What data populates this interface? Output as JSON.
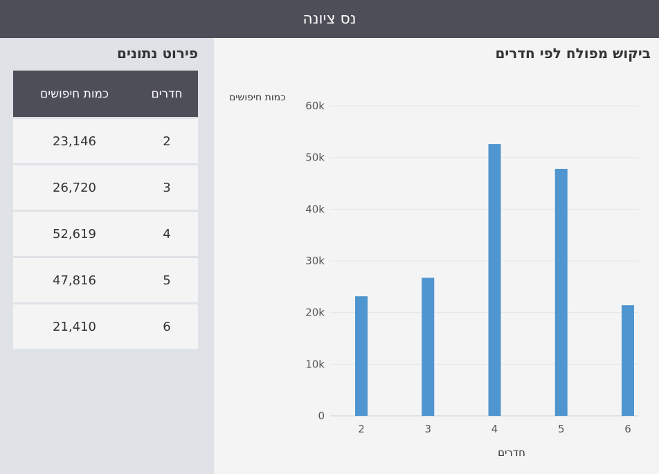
{
  "header": {
    "title": "נס ציונה"
  },
  "chart_data": {
    "type": "bar",
    "title": "ביקוש מפולח לפי חדרים",
    "xlabel": "חדרים",
    "ylabel": "כמות חיפושים",
    "categories": [
      "2",
      "3",
      "4",
      "5",
      "6"
    ],
    "values": [
      23146,
      26720,
      52619,
      47816,
      21410
    ],
    "ylim": [
      0,
      60000
    ],
    "yticks": [
      "0",
      "10k",
      "20k",
      "30k",
      "40k",
      "50k",
      "60k"
    ],
    "grid": true,
    "bar_color": "#4f95cf"
  },
  "table": {
    "title": "פירוט נתונים",
    "headers": {
      "rooms": "חדרים",
      "count": "כמות חיפושים"
    },
    "rows": [
      {
        "rooms": "2",
        "count": "23,146"
      },
      {
        "rooms": "3",
        "count": "26,720"
      },
      {
        "rooms": "4",
        "count": "52,619"
      },
      {
        "rooms": "5",
        "count": "47,816"
      },
      {
        "rooms": "6",
        "count": "21,410"
      }
    ]
  }
}
